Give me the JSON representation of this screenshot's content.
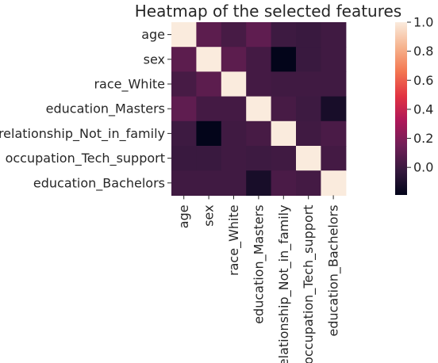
{
  "chart_data": {
    "type": "heatmap",
    "title": "Heatmap of the selected features",
    "labels": [
      "age",
      "sex",
      "race_White",
      "education_Masters",
      "relationship_Not_in_family",
      "occupation_Tech_support",
      "education_Bachelors"
    ],
    "matrix": [
      [
        1.0,
        0.09,
        0.03,
        0.1,
        0.0,
        -0.01,
        0.01
      ],
      [
        0.09,
        1.0,
        0.09,
        0.02,
        -0.19,
        -0.01,
        0.01
      ],
      [
        0.03,
        0.09,
        1.0,
        0.02,
        0.01,
        0.01,
        0.01
      ],
      [
        0.1,
        0.02,
        0.02,
        1.0,
        0.03,
        0.0,
        -0.12
      ],
      [
        0.0,
        -0.19,
        0.01,
        0.03,
        1.0,
        0.01,
        0.04
      ],
      [
        -0.01,
        -0.01,
        0.01,
        0.0,
        0.01,
        1.0,
        0.02
      ],
      [
        0.01,
        0.01,
        0.01,
        -0.12,
        0.04,
        0.02,
        1.0
      ]
    ],
    "colorbar": {
      "min": -0.19,
      "max": 1.0,
      "ticks": [
        "1.0",
        "0.8",
        "0.6",
        "0.4",
        "0.2",
        "0.0"
      ],
      "tick_values": [
        1.0,
        0.8,
        0.6,
        0.4,
        0.2,
        0.0
      ]
    },
    "colormap": "rocket",
    "colormap_stops": [
      "#03051a",
      "#36193e",
      "#701f57",
      "#ae1759",
      "#e13342",
      "#f37651",
      "#f6b48f",
      "#faebdd"
    ]
  }
}
